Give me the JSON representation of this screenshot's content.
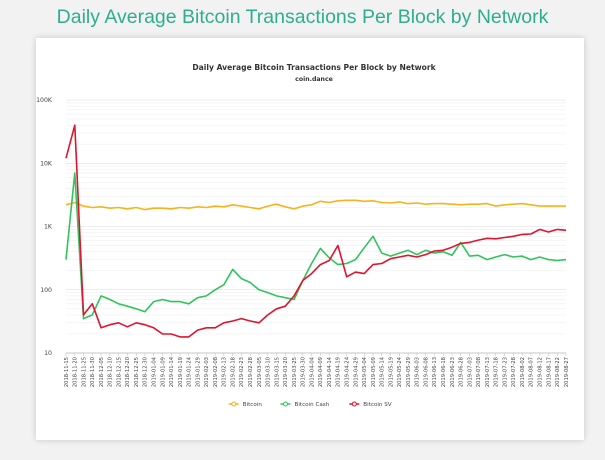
{
  "page": {
    "heading": "Daily Average Bitcoin Transactions Per Block by Network"
  },
  "chart_data": {
    "type": "line",
    "title": "Daily Average Bitcoin Transactions Per Block by Network",
    "subtitle": "coin.dance",
    "xlabel": "",
    "ylabel": "",
    "y_scale": "log",
    "ylim": [
      10,
      100000
    ],
    "y_ticks": [
      "10",
      "100",
      "1K",
      "10K",
      "100K"
    ],
    "grid": true,
    "legend_position": "bottom",
    "x_tick_labels": [
      "2018-11-15",
      "2018-11-20",
      "2018-11-25",
      "2018-11-30",
      "2018-12-05",
      "2018-12-10",
      "2018-12-15",
      "2018-12-20",
      "2018-12-25",
      "2018-12-30",
      "2019-01-04",
      "2019-01-09",
      "2019-01-14",
      "2019-01-19",
      "2019-01-24",
      "2019-01-29",
      "2019-02-03",
      "2019-02-08",
      "2019-02-13",
      "2019-02-18",
      "2019-02-23",
      "2019-02-28",
      "2019-03-05",
      "2019-03-10",
      "2019-03-15",
      "2019-03-20",
      "2019-03-25",
      "2019-03-30",
      "2019-04-04",
      "2019-04-09",
      "2019-04-14",
      "2019-04-19",
      "2019-04-24",
      "2019-04-29",
      "2019-05-04",
      "2019-05-09",
      "2019-05-14",
      "2019-05-19",
      "2019-05-24",
      "2019-05-29",
      "2019-06-03",
      "2019-06-08",
      "2019-06-13",
      "2019-06-18",
      "2019-06-23",
      "2019-06-28",
      "2019-07-03",
      "2019-07-08",
      "2019-07-13",
      "2019-07-18",
      "2019-07-23",
      "2019-07-28",
      "2019-08-02",
      "2019-08-07",
      "2019-08-12",
      "2019-08-17",
      "2019-08-22",
      "2019-08-27"
    ],
    "series": [
      {
        "name": "Bitcoin",
        "color": "#f5b41b",
        "values": [
          2200,
          2400,
          2100,
          2000,
          2050,
          1950,
          2000,
          1900,
          2000,
          1850,
          1950,
          1950,
          1900,
          2000,
          1950,
          2050,
          2000,
          2100,
          2050,
          2200,
          2100,
          2000,
          1900,
          2100,
          2250,
          2050,
          1900,
          2100,
          2200,
          2500,
          2400,
          2550,
          2600,
          2600,
          2500,
          2550,
          2400,
          2350,
          2450,
          2300,
          2350,
          2250,
          2300,
          2300,
          2250,
          2200,
          2250,
          2250,
          2300,
          2100,
          2200,
          2250,
          2300,
          2200,
          2100,
          2100,
          2100,
          2100
        ]
      },
      {
        "name": "Bitcoin Cash",
        "color": "#32c45c",
        "values": [
          300,
          7000,
          35,
          40,
          80,
          70,
          60,
          55,
          50,
          45,
          65,
          70,
          65,
          65,
          60,
          75,
          80,
          100,
          120,
          210,
          150,
          130,
          100,
          90,
          80,
          75,
          70,
          140,
          260,
          450,
          320,
          250,
          260,
          300,
          460,
          700,
          380,
          340,
          380,
          420,
          360,
          420,
          380,
          400,
          350,
          560,
          340,
          350,
          300,
          330,
          360,
          330,
          340,
          300,
          330,
          300,
          290,
          300
        ]
      },
      {
        "name": "Bitcoin SV",
        "color": "#e2132f",
        "values": [
          12000,
          40000,
          40,
          60,
          25,
          28,
          30,
          26,
          30,
          28,
          25,
          20,
          20,
          18,
          18,
          23,
          25,
          25,
          30,
          32,
          35,
          32,
          30,
          40,
          50,
          55,
          80,
          140,
          180,
          250,
          290,
          500,
          160,
          190,
          180,
          250,
          260,
          310,
          330,
          350,
          330,
          360,
          410,
          420,
          470,
          540,
          560,
          610,
          650,
          640,
          670,
          700,
          750,
          760,
          900,
          820,
          900,
          870
        ]
      }
    ]
  }
}
